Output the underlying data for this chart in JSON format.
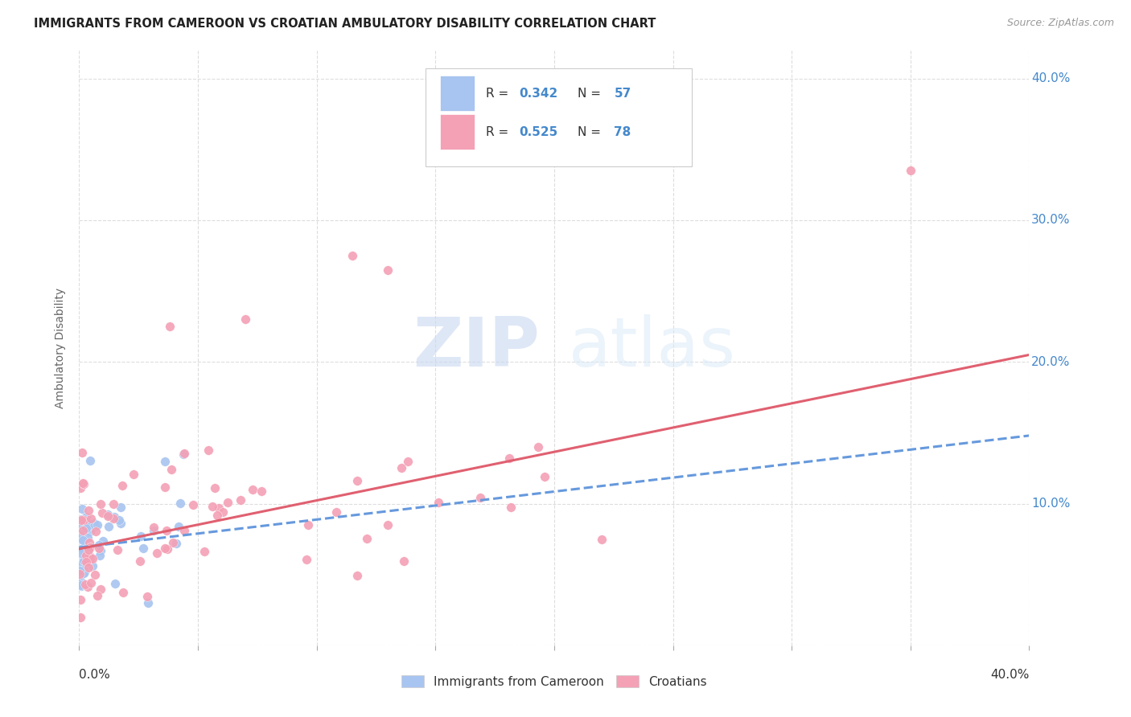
{
  "title": "IMMIGRANTS FROM CAMEROON VS CROATIAN AMBULATORY DISABILITY CORRELATION CHART",
  "source": "Source: ZipAtlas.com",
  "ylabel": "Ambulatory Disability",
  "xlim": [
    0.0,
    0.4
  ],
  "ylim": [
    0.0,
    0.42
  ],
  "yticks": [
    0.0,
    0.1,
    0.2,
    0.3,
    0.4
  ],
  "ytick_labels": [
    "",
    "10.0%",
    "20.0%",
    "30.0%",
    "40.0%"
  ],
  "label1": "Immigrants from Cameroon",
  "label2": "Croatians",
  "color1": "#a8c4f0",
  "color2": "#f4a0b5",
  "trend_color1": "#6699dd",
  "trend_color2": "#e06070",
  "watermark_zip": "ZIP",
  "watermark_atlas": "atlas",
  "background_color": "#ffffff",
  "trend1_x0": 0.0,
  "trend1_y0": 0.069,
  "trend1_x1": 0.4,
  "trend1_y1": 0.148,
  "trend2_x0": 0.0,
  "trend2_y0": 0.068,
  "trend2_x1": 0.4,
  "trend2_y1": 0.205
}
